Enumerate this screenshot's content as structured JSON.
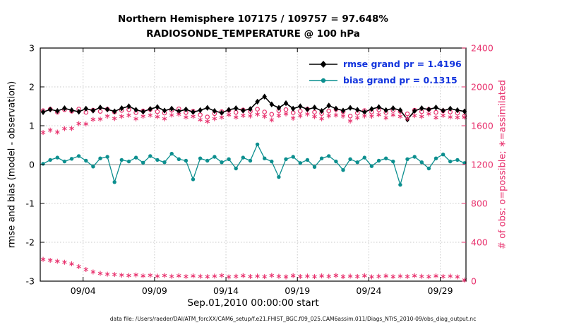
{
  "header": {
    "title_line1": "Northern Hemisphere 107175 / 109757 = 97.648%",
    "title_line2": "RADIOSONDE_TEMPERATURE @ 100 hPa"
  },
  "legend": {
    "rmse_label": "rmse grand pr = 1.4196",
    "bias_label": "bias grand pr = 0.1315"
  },
  "footer": {
    "data_file": "data file: /Users/raeder/DAI/ATM_forcXX/CAM6_setup/f.e21.FHIST_BGC.f09_025.CAM6assim.011/Diags_NTrS_2010-09/obs_diag_output.nc"
  },
  "colors": {
    "rmse": "#000000",
    "bias": "#0c8f8f",
    "obs": "#e8326e",
    "legend_text": "#1133dd",
    "grid": "#c9c9c9"
  },
  "chart_data": {
    "type": "line",
    "title": "Northern Hemisphere 107175 / 109757 = 97.648%",
    "subtitle": "RADIOSONDE_TEMPERATURE @ 100 hPa",
    "xlabel": "Sep.01,2010 00:00:00 start",
    "ylabel_left": "rmse and bias (model - observation)",
    "ylabel_right": "# of obs: o=possible; ∗=assimilated",
    "grid": true,
    "legend_position": "upper-right-inside",
    "x_range": [
      0,
      29.8
    ],
    "y_left_range": [
      -3,
      3
    ],
    "y_right_range": [
      0,
      2400
    ],
    "y_left_ticks": [
      3,
      2,
      1,
      0,
      -1,
      -2,
      -3
    ],
    "y_right_ticks": [
      2400,
      2000,
      1600,
      1200,
      800,
      400,
      0
    ],
    "x_tick_days": [
      3,
      8,
      13,
      18,
      23,
      28
    ],
    "x_tick_labels": [
      "09/04",
      "09/09",
      "09/14",
      "09/19",
      "09/24",
      "09/29"
    ],
    "x": [
      0.2,
      0.7,
      1.2,
      1.7,
      2.2,
      2.7,
      3.2,
      3.7,
      4.2,
      4.7,
      5.2,
      5.7,
      6.2,
      6.7,
      7.2,
      7.7,
      8.2,
      8.7,
      9.2,
      9.7,
      10.2,
      10.7,
      11.2,
      11.7,
      12.2,
      12.7,
      13.2,
      13.7,
      14.2,
      14.7,
      15.2,
      15.7,
      16.2,
      16.7,
      17.2,
      17.7,
      18.2,
      18.7,
      19.2,
      19.7,
      20.2,
      20.7,
      21.2,
      21.7,
      22.2,
      22.7,
      23.2,
      23.7,
      24.2,
      24.7,
      25.2,
      25.7,
      26.2,
      26.7,
      27.2,
      27.7,
      28.2,
      28.7,
      29.2,
      29.7
    ],
    "series": {
      "rmse": [
        1.35,
        1.42,
        1.38,
        1.45,
        1.4,
        1.36,
        1.44,
        1.39,
        1.47,
        1.42,
        1.37,
        1.45,
        1.5,
        1.41,
        1.36,
        1.43,
        1.48,
        1.39,
        1.44,
        1.37,
        1.42,
        1.35,
        1.4,
        1.46,
        1.38,
        1.33,
        1.41,
        1.45,
        1.39,
        1.43,
        1.62,
        1.75,
        1.55,
        1.46,
        1.58,
        1.44,
        1.5,
        1.42,
        1.47,
        1.38,
        1.52,
        1.44,
        1.39,
        1.46,
        1.41,
        1.35,
        1.43,
        1.48,
        1.4,
        1.45,
        1.4,
        1.16,
        1.38,
        1.45,
        1.42,
        1.47,
        1.39,
        1.44,
        1.4,
        1.37
      ],
      "bias": [
        0.02,
        0.12,
        0.18,
        0.08,
        0.15,
        0.22,
        0.1,
        -0.05,
        0.16,
        0.2,
        -0.45,
        0.12,
        0.08,
        0.18,
        0.05,
        0.22,
        0.12,
        0.06,
        0.28,
        0.14,
        0.1,
        -0.38,
        0.16,
        0.1,
        0.2,
        0.06,
        0.14,
        -0.1,
        0.18,
        0.1,
        0.52,
        0.16,
        0.08,
        -0.32,
        0.14,
        0.2,
        0.04,
        0.12,
        -0.06,
        0.16,
        0.22,
        0.08,
        -0.14,
        0.14,
        0.06,
        0.18,
        -0.04,
        0.1,
        0.16,
        0.08,
        -0.52,
        0.14,
        0.2,
        0.06,
        -0.1,
        0.16,
        0.26,
        0.08,
        0.12,
        0.04
      ],
      "possible": [
        1755,
        1770,
        1740,
        1765,
        1750,
        1772,
        1738,
        1760,
        1748,
        1770,
        1742,
        1758,
        1766,
        1735,
        1752,
        1768,
        1745,
        1730,
        1760,
        1774,
        1736,
        1750,
        1712,
        1690,
        1725,
        1745,
        1758,
        1738,
        1762,
        1748,
        1770,
        1742,
        1718,
        1755,
        1766,
        1734,
        1750,
        1772,
        1740,
        1726,
        1752,
        1768,
        1745,
        1700,
        1730,
        1756,
        1742,
        1764,
        1736,
        1758,
        1748,
        1722,
        1760,
        1745,
        1768,
        1738,
        1754,
        1742,
        1730,
        1700
      ],
      "assimilated": [
        1530,
        1555,
        1535,
        1570,
        1572,
        1622,
        1618,
        1665,
        1668,
        1698,
        1674,
        1696,
        1708,
        1671,
        1697,
        1708,
        1693,
        1672,
        1710,
        1718,
        1688,
        1696,
        1662,
        1644,
        1673,
        1687,
        1714,
        1688,
        1706,
        1700,
        1718,
        1696,
        1660,
        1705,
        1722,
        1678,
        1702,
        1720,
        1694,
        1672,
        1702,
        1710,
        1699,
        1648,
        1682,
        1700,
        1698,
        1714,
        1682,
        1712,
        1696,
        1674,
        1704,
        1695,
        1722,
        1684,
        1706,
        1690,
        1686,
        1688
      ],
      "rejected": [
        225,
        215,
        205,
        195,
        178,
        150,
        120,
        95,
        80,
        72,
        68,
        62,
        58,
        64,
        55,
        60,
        52,
        58,
        50,
        56,
        48,
        54,
        50,
        46,
        52,
        58,
        44,
        50,
        56,
        48,
        52,
        46,
        58,
        50,
        44,
        56,
        48,
        52,
        46,
        54,
        50,
        58,
        46,
        52,
        48,
        56,
        44,
        50,
        54,
        46,
        52,
        48,
        56,
        50,
        46,
        54,
        48,
        52,
        44,
        12
      ]
    }
  }
}
